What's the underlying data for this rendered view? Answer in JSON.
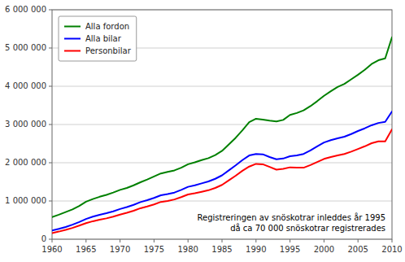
{
  "chart_data": {
    "type": "line",
    "x": [
      1960,
      1961,
      1962,
      1963,
      1964,
      1965,
      1966,
      1967,
      1968,
      1969,
      1970,
      1971,
      1972,
      1973,
      1974,
      1975,
      1976,
      1977,
      1978,
      1979,
      1980,
      1981,
      1982,
      1983,
      1984,
      1985,
      1986,
      1987,
      1988,
      1989,
      1990,
      1991,
      1992,
      1993,
      1994,
      1995,
      1996,
      1997,
      1998,
      1999,
      2000,
      2001,
      2002,
      2003,
      2004,
      2005,
      2006,
      2007,
      2008,
      2009,
      2010
    ],
    "series": [
      {
        "name": "Alla fordon",
        "color": "#008000",
        "values": [
          580000,
          640000,
          710000,
          780000,
          870000,
          980000,
          1050000,
          1110000,
          1160000,
          1220000,
          1290000,
          1340000,
          1410000,
          1490000,
          1560000,
          1640000,
          1720000,
          1760000,
          1800000,
          1870000,
          1960000,
          2010000,
          2070000,
          2120000,
          2200000,
          2310000,
          2480000,
          2650000,
          2850000,
          3060000,
          3150000,
          3130000,
          3100000,
          3080000,
          3120000,
          3250000,
          3300000,
          3370000,
          3480000,
          3610000,
          3750000,
          3870000,
          3980000,
          4060000,
          4180000,
          4300000,
          4430000,
          4580000,
          4680000,
          4730000,
          5280000
        ]
      },
      {
        "name": "Alla bilar",
        "color": "#0000FF",
        "values": [
          230000,
          270000,
          320000,
          380000,
          450000,
          530000,
          590000,
          640000,
          680000,
          730000,
          790000,
          840000,
          900000,
          970000,
          1020000,
          1080000,
          1150000,
          1180000,
          1220000,
          1290000,
          1370000,
          1410000,
          1460000,
          1510000,
          1580000,
          1670000,
          1800000,
          1930000,
          2070000,
          2190000,
          2230000,
          2220000,
          2150000,
          2090000,
          2110000,
          2170000,
          2190000,
          2230000,
          2320000,
          2430000,
          2530000,
          2590000,
          2640000,
          2680000,
          2750000,
          2830000,
          2900000,
          2980000,
          3040000,
          3070000,
          3340000
        ]
      },
      {
        "name": "Personbilar",
        "color": "#FF0000",
        "values": [
          160000,
          200000,
          245000,
          295000,
          355000,
          420000,
          470000,
          510000,
          545000,
          590000,
          645000,
          690000,
          745000,
          810000,
          855000,
          910000,
          975000,
          1000000,
          1040000,
          1100000,
          1170000,
          1200000,
          1240000,
          1280000,
          1340000,
          1420000,
          1540000,
          1660000,
          1790000,
          1900000,
          1970000,
          1960000,
          1890000,
          1820000,
          1840000,
          1880000,
          1870000,
          1870000,
          1940000,
          2020000,
          2100000,
          2150000,
          2190000,
          2230000,
          2290000,
          2360000,
          2430000,
          2510000,
          2560000,
          2560000,
          2870000
        ]
      }
    ],
    "xlim": [
      1960,
      2010
    ],
    "xticks": [
      1960,
      1965,
      1970,
      1975,
      1980,
      1985,
      1990,
      1995,
      2000,
      2005,
      2010
    ],
    "ylim": [
      0,
      6000000
    ],
    "yticks": [
      0,
      {
        "value": 1000000,
        "label": "1 000 000"
      },
      {
        "value": 2000000,
        "label": "2 000 000"
      },
      {
        "value": 3000000,
        "label": "3 000 000"
      },
      {
        "value": 4000000,
        "label": "4 000 000"
      },
      {
        "value": 5000000,
        "label": "5 000 000"
      },
      {
        "value": 6000000,
        "label": "6 000 000"
      }
    ],
    "grid": true,
    "legend": "upper left",
    "annotations": [
      "Registreringen av snöskotrar inleddes år 1995",
      "då ca 70 000 snöskotrar registrerades"
    ]
  }
}
